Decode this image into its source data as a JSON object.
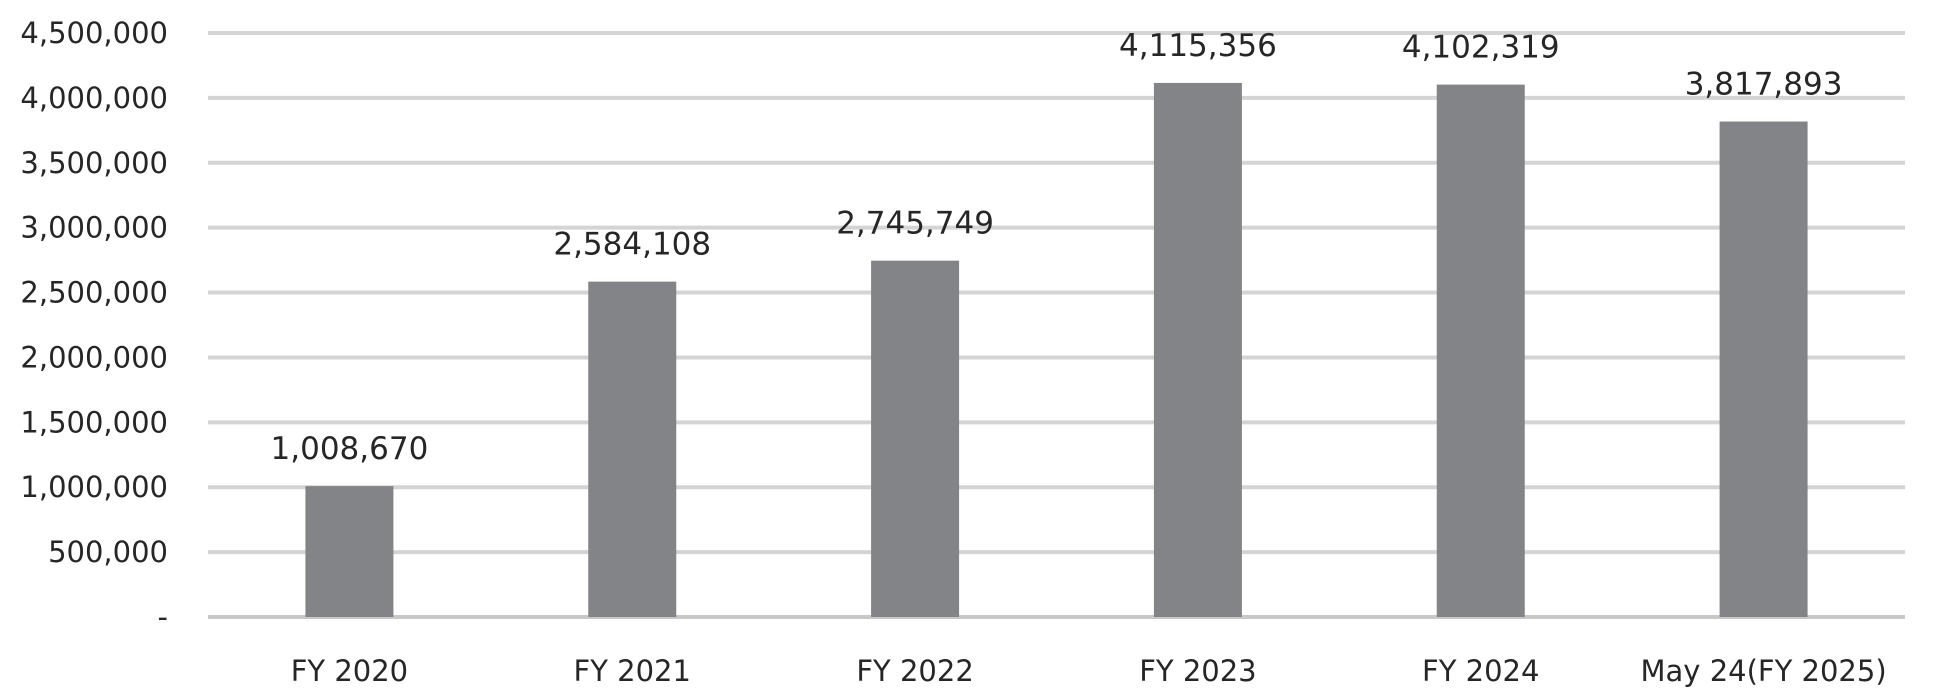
{
  "chart_data": {
    "type": "bar",
    "categories": [
      "FY 2020",
      "FY 2021",
      "FY 2022",
      "FY 2023",
      "FY 2024",
      "May 24(FY 2025)"
    ],
    "values": [
      1008670,
      2584108,
      2745749,
      4115356,
      4102319,
      3817893
    ],
    "data_labels": [
      "1,008,670",
      "2,584,108",
      "2,745,749",
      "4,115,356",
      "4,102,319",
      "3,817,893"
    ],
    "ylim": [
      0,
      4500000
    ],
    "yticks": [
      0,
      500000,
      1000000,
      1500000,
      2000000,
      2500000,
      3000000,
      3500000,
      4000000,
      4500000
    ],
    "ytick_labels": [
      "-",
      "500,000",
      "1,000,000",
      "1,500,000",
      "2,000,000",
      "2,500,000",
      "3,000,000",
      "3,500,000",
      "4,000,000",
      "4,500,000"
    ],
    "grid": true,
    "legend": "none",
    "bar_color": "#838487",
    "title": "",
    "xlabel": "",
    "ylabel": ""
  }
}
